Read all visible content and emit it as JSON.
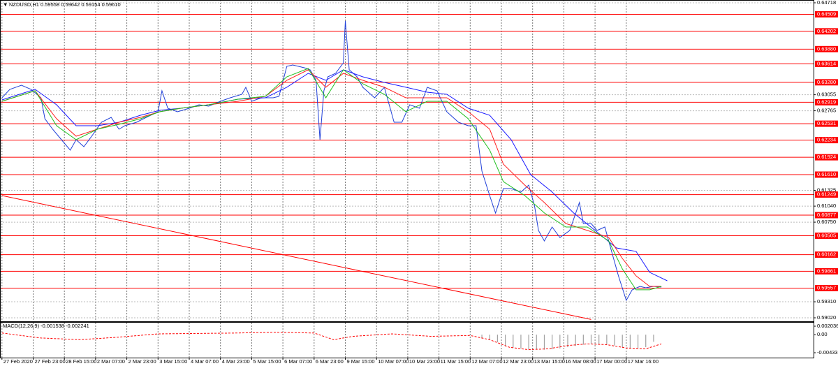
{
  "chart_data": [
    {
      "type": "price",
      "title": "NZDUSD,H1  0.59558 0.59642 0.59154 0.59610",
      "xlim": [
        -1,
        416
      ],
      "xticks": [
        {
          "value": 0,
          "label": "27 Feb 2020"
        },
        {
          "value": 16,
          "label": "27 Feb 23:00"
        },
        {
          "value": 32,
          "label": "28 Feb 15:00"
        },
        {
          "value": 48,
          "label": "2 Mar 07:00"
        },
        {
          "value": 64,
          "label": "2 Mar 23:00"
        },
        {
          "value": 80,
          "label": "3 Mar 15:00"
        },
        {
          "value": 96,
          "label": "4 Mar 07:00"
        },
        {
          "value": 112,
          "label": "4 Mar 23:00"
        },
        {
          "value": 128,
          "label": "5 Mar 15:00"
        },
        {
          "value": 144,
          "label": "6 Mar 07:00"
        },
        {
          "value": 160,
          "label": "6 Mar 23:00"
        },
        {
          "value": 176,
          "label": "9 Mar 15:00"
        },
        {
          "value": 192,
          "label": "10 Mar 07:00"
        },
        {
          "value": 208,
          "label": "10 Mar 23:00"
        },
        {
          "value": 224,
          "label": "11 Mar 15:00"
        },
        {
          "value": 240,
          "label": "12 Mar 07:00"
        },
        {
          "value": 256,
          "label": "12 Mar 23:00"
        },
        {
          "value": 272,
          "label": "13 Mar 15:00"
        },
        {
          "value": 288,
          "label": "16 Mar 08:00"
        },
        {
          "value": 304,
          "label": "17 Mar 00:00"
        },
        {
          "value": 320,
          "label": "17 Mar 16:00"
        }
      ],
      "ylim": [
        0.5902,
        0.64718
      ],
      "yticks": [
        0.64718,
        0.63055,
        0.62765,
        0.61325,
        {
          "value": 0.6104,
          "label": "0.61040"
        },
        {
          "value": 0.6075,
          "label": "0.60750"
        },
        {
          "value": 0.5931,
          "label": "0.59310"
        },
        {
          "value": 0.5902,
          "label": "0.59020"
        }
      ],
      "levels": [
        0.64509,
        0.64202,
        {
          "value": 0.6388,
          "label": "0.63880"
        },
        0.63614,
        {
          "value": 0.6328,
          "label": "0.63280"
        },
        0.62919,
        0.62531,
        0.62234,
        0.61924,
        {
          "value": 0.6161,
          "label": "0.61610"
        },
        0.61249,
        0.60877,
        0.60505,
        0.60162,
        0.59861,
        0.59557
      ],
      "level_color": "#ff0000",
      "grid": true,
      "series": [
        {
          "color": "#2040d8",
          "x": [
            0,
            4,
            10,
            15,
            20,
            22,
            26,
            29,
            35,
            38,
            42,
            46,
            51,
            56,
            60,
            63,
            69,
            74,
            80,
            82,
            85,
            90,
            96,
            101,
            106,
            112,
            117,
            123,
            125,
            128,
            133,
            139,
            142,
            146,
            149,
            155,
            158,
            161,
            163,
            165,
            167,
            171,
            175,
            176,
            178,
            182,
            185,
            191,
            196,
            201,
            205,
            209,
            214,
            218,
            223,
            228,
            234,
            239,
            243,
            246,
            250,
            253,
            257,
            261,
            266,
            270,
            273,
            275,
            278,
            282,
            286,
            291,
            296,
            298,
            302,
            305,
            309,
            313,
            316,
            320,
            323,
            327,
            330,
            334,
            338
          ],
          "values": [
            0.63,
            0.63151,
            0.63227,
            0.63151,
            0.63,
            0.62621,
            0.62431,
            0.62305,
            0.62052,
            0.62242,
            0.62115,
            0.62305,
            0.62558,
            0.62646,
            0.62431,
            0.62494,
            0.62558,
            0.62646,
            0.62747,
            0.63126,
            0.6281,
            0.62747,
            0.6281,
            0.62873,
            0.62848,
            0.62937,
            0.63,
            0.63063,
            0.63189,
            0.62937,
            0.63,
            0.63,
            0.63025,
            0.63568,
            0.63594,
            0.63543,
            0.63505,
            0.63316,
            0.62242,
            0.63126,
            0.63379,
            0.63442,
            0.63631,
            0.6439,
            0.63505,
            0.63379,
            0.63189,
            0.63,
            0.63189,
            0.62558,
            0.62558,
            0.62873,
            0.6281,
            0.63189,
            0.63126,
            0.62747,
            0.62558,
            0.62494,
            0.62494,
            0.61673,
            0.61231,
            0.60915,
            0.61357,
            0.61357,
            0.61294,
            0.61421,
            0.61042,
            0.60599,
            0.6041,
            0.60662,
            0.60473,
            0.60599,
            0.61105,
            0.60726,
            0.60726,
            0.60599,
            0.60662,
            0.60157,
            0.59778,
            0.59336,
            0.59525,
            0.59589,
            0.59563,
            0.59589,
            0.59576
          ]
        },
        {
          "color": "#1a1aff",
          "x": [
            0,
            17,
            28,
            38,
            49,
            60,
            71,
            81,
            92,
            106,
            121,
            135,
            146,
            157,
            166,
            175,
            185,
            196,
            207,
            218,
            228,
            239,
            250,
            261,
            271,
            282,
            293,
            304,
            315,
            325,
            332,
            341
          ],
          "values": [
            0.62962,
            0.63152,
            0.62874,
            0.62495,
            0.62495,
            0.62558,
            0.62684,
            0.62773,
            0.62811,
            0.62874,
            0.62975,
            0.63,
            0.6319,
            0.63442,
            0.63316,
            0.63506,
            0.63379,
            0.63278,
            0.6319,
            0.63101,
            0.63063,
            0.62811,
            0.62684,
            0.62242,
            0.6161,
            0.61295,
            0.60916,
            0.606,
            0.60284,
            0.60221,
            0.59842,
            0.5969
          ]
        },
        {
          "color": "#ff2020",
          "x": [
            0,
            17,
            28,
            38,
            49,
            60,
            71,
            81,
            92,
            106,
            121,
            135,
            146,
            157,
            166,
            175,
            185,
            196,
            207,
            218,
            228,
            239,
            250,
            257,
            268,
            278,
            289,
            300,
            311,
            318,
            325,
            332,
            338
          ],
          "values": [
            0.62937,
            0.63127,
            0.62621,
            0.62305,
            0.62432,
            0.62558,
            0.62646,
            0.62748,
            0.62811,
            0.62874,
            0.62937,
            0.63026,
            0.63316,
            0.63506,
            0.6319,
            0.63442,
            0.63316,
            0.6319,
            0.63,
            0.63,
            0.63,
            0.62748,
            0.62432,
            0.618,
            0.61421,
            0.61105,
            0.60726,
            0.606,
            0.60473,
            0.60094,
            0.59779,
            0.59589,
            0.59589
          ]
        },
        {
          "color": "#20c020",
          "x": [
            0,
            17,
            28,
            38,
            49,
            60,
            71,
            81,
            92,
            106,
            121,
            135,
            146,
            157,
            166,
            175,
            185,
            196,
            207,
            218,
            228,
            239,
            250,
            257,
            268,
            278,
            289,
            300,
            311,
            318,
            325,
            332,
            338
          ],
          "values": [
            0.62937,
            0.63127,
            0.62495,
            0.62242,
            0.62432,
            0.6252,
            0.62621,
            0.62748,
            0.62811,
            0.62874,
            0.62975,
            0.63026,
            0.63379,
            0.63531,
            0.63,
            0.63506,
            0.63253,
            0.63063,
            0.62748,
            0.62937,
            0.62937,
            0.62621,
            0.62053,
            0.61484,
            0.61231,
            0.60916,
            0.60663,
            0.60663,
            0.6041,
            0.59905,
            0.59526,
            0.59526,
            0.59589
          ]
        }
      ],
      "trendline": {
        "color": "#ff0000",
        "x": [
          0,
          302
        ],
        "values": [
          0.61231,
          0.5899
        ]
      }
    },
    {
      "type": "macd",
      "title": "MACD(12,26,9) -0.001538 -0.002241",
      "xlim": [
        -1,
        416
      ],
      "ylim": [
        -0.004332,
        0.002036
      ],
      "yticks": [
        0.002036,
        {
          "value": 0,
          "label": "0.00"
        },
        -0.004332
      ],
      "histogram": {
        "color": "#a0a0a0",
        "x": [
          246,
          250,
          254,
          258,
          262,
          266,
          270,
          274,
          278,
          282,
          286,
          290,
          294,
          298,
          302,
          306,
          310,
          314,
          318,
          322,
          326,
          330,
          334
        ],
        "values": [
          -0.0009,
          -0.0013,
          -0.0018,
          -0.0028,
          -0.0031,
          -0.0033,
          -0.0035,
          -0.0036,
          -0.0036,
          -0.0035,
          -0.0033,
          -0.003,
          -0.0027,
          -0.0024,
          -0.0022,
          -0.0022,
          -0.0023,
          -0.0026,
          -0.003,
          -0.0032,
          -0.0033,
          -0.003,
          -0.0017
        ]
      },
      "signal": {
        "color": "#ff0000",
        "x": [
          0,
          20,
          40,
          60,
          80,
          100,
          120,
          140,
          160,
          170,
          180,
          200,
          220,
          240,
          250,
          260,
          270,
          280,
          290,
          300,
          310,
          320,
          330,
          338
        ],
        "values": [
          0.0004,
          -0.0008,
          -0.0012,
          -0.0006,
          0.0002,
          0.0003,
          0.0004,
          0.0006,
          0.0004,
          -0.0012,
          -0.0004,
          0.0002,
          -0.0004,
          -0.0002,
          -0.0012,
          -0.003,
          -0.0036,
          -0.0034,
          -0.0026,
          -0.0022,
          -0.0024,
          -0.0032,
          -0.0034,
          -0.0022
        ]
      }
    }
  ]
}
